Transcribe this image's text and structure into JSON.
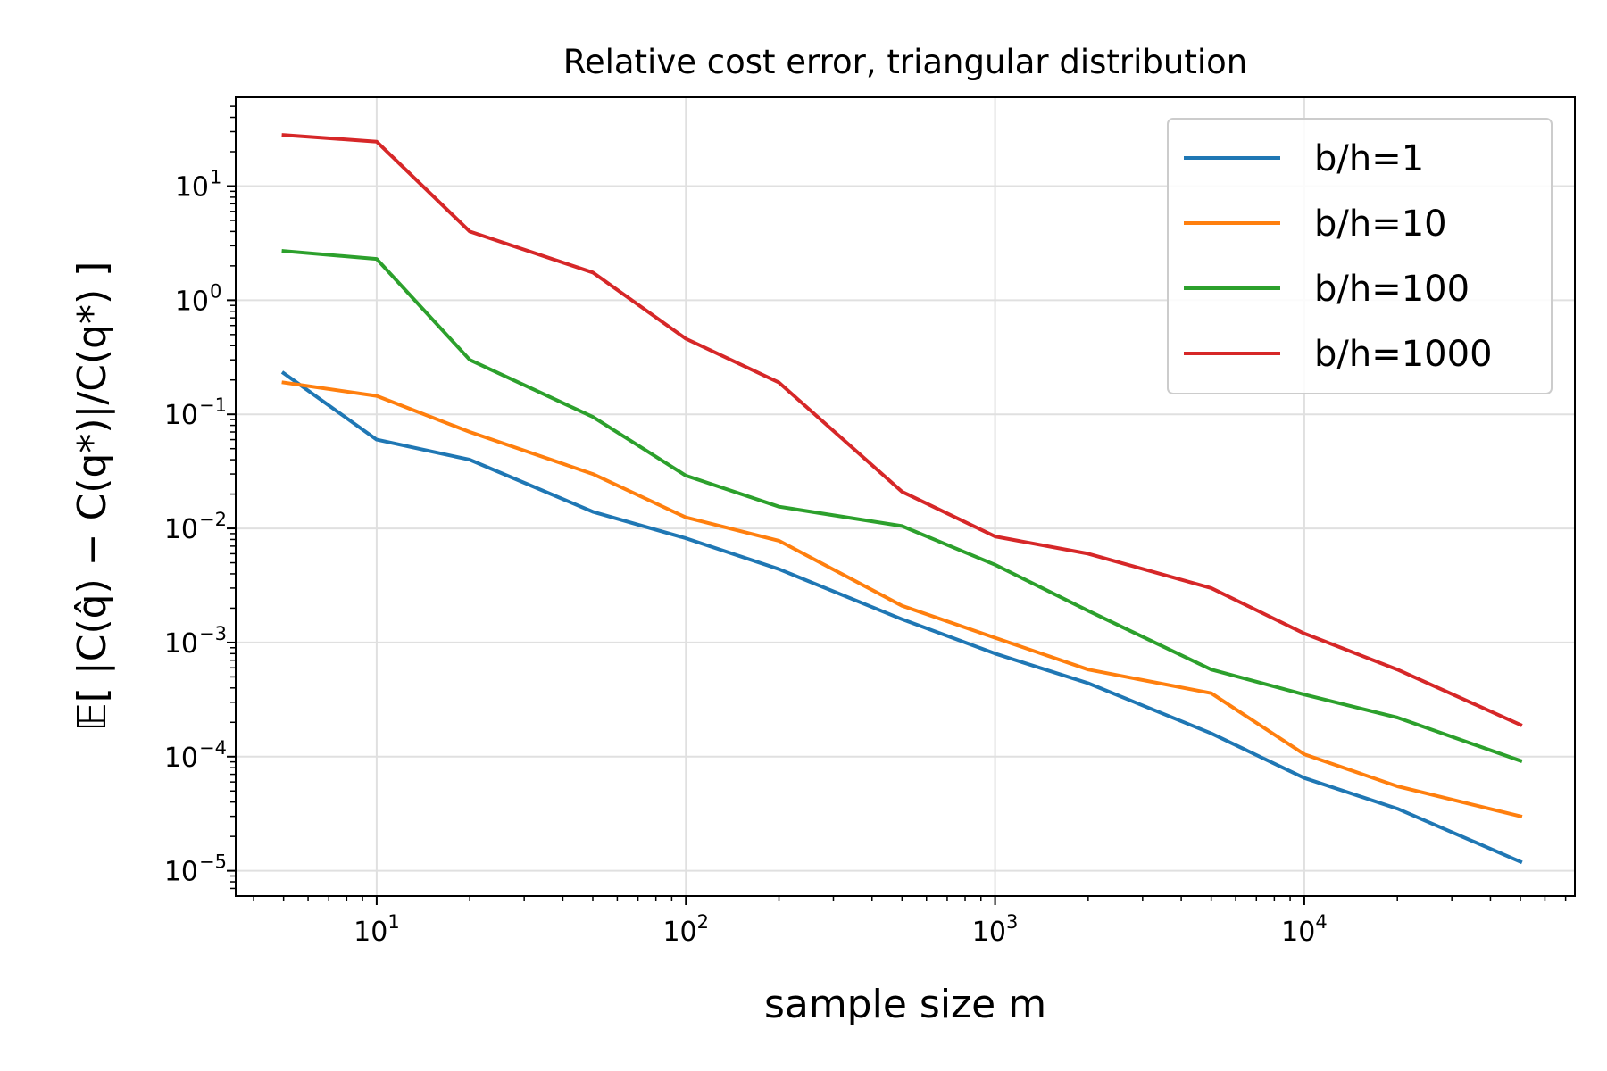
{
  "chart_data": {
    "type": "line",
    "title": "Relative cost error, triangular distribution",
    "xlabel": "sample size  m",
    "ylabel": "𝔼[ |C(q̂) − C(q*)|/C(q*) ]",
    "xscale": "log",
    "yscale": "log",
    "xlim": [
      3.5,
      75000
    ],
    "ylim": [
      6e-06,
      60
    ],
    "grid": true,
    "legend_position": "top-right",
    "x_ticks": [
      {
        "base": "10",
        "exp": "1",
        "value": 10
      },
      {
        "base": "10",
        "exp": "2",
        "value": 100
      },
      {
        "base": "10",
        "exp": "3",
        "value": 1000
      },
      {
        "base": "10",
        "exp": "4",
        "value": 10000
      }
    ],
    "y_ticks": [
      {
        "base": "10",
        "exp": "1",
        "value": 10
      },
      {
        "base": "10",
        "exp": "0",
        "value": 1
      },
      {
        "base": "10",
        "exp": "−1",
        "value": 0.1
      },
      {
        "base": "10",
        "exp": "−2",
        "value": 0.01
      },
      {
        "base": "10",
        "exp": "−3",
        "value": 0.001
      },
      {
        "base": "10",
        "exp": "−4",
        "value": 0.0001
      },
      {
        "base": "10",
        "exp": "−5",
        "value": 1e-05
      }
    ],
    "x": [
      5,
      10,
      20,
      50,
      100,
      200,
      500,
      1000,
      2000,
      5000,
      10000,
      20000,
      50000
    ],
    "series": [
      {
        "name": "b/h=1",
        "color": "#1f77b4",
        "values": [
          0.23,
          0.06,
          0.04,
          0.014,
          0.0082,
          0.0044,
          0.0016,
          0.0008,
          0.00044,
          0.00016,
          6.5e-05,
          3.5e-05,
          1.2e-05
        ]
      },
      {
        "name": "b/h=10",
        "color": "#ff7f0e",
        "values": [
          0.19,
          0.145,
          0.07,
          0.03,
          0.0125,
          0.0078,
          0.0021,
          0.0011,
          0.00058,
          0.00036,
          0.000105,
          5.5e-05,
          3e-05
        ]
      },
      {
        "name": "b/h=100",
        "color": "#2ca02c",
        "values": [
          2.7,
          2.3,
          0.3,
          0.095,
          0.029,
          0.0155,
          0.0105,
          0.0048,
          0.0019,
          0.00058,
          0.00035,
          0.00022,
          9.2e-05
        ]
      },
      {
        "name": "b/h=1000",
        "color": "#d62728",
        "values": [
          28,
          24.5,
          4.0,
          1.75,
          0.46,
          0.19,
          0.021,
          0.0085,
          0.006,
          0.003,
          0.0012,
          0.00058,
          0.00019
        ]
      }
    ]
  }
}
